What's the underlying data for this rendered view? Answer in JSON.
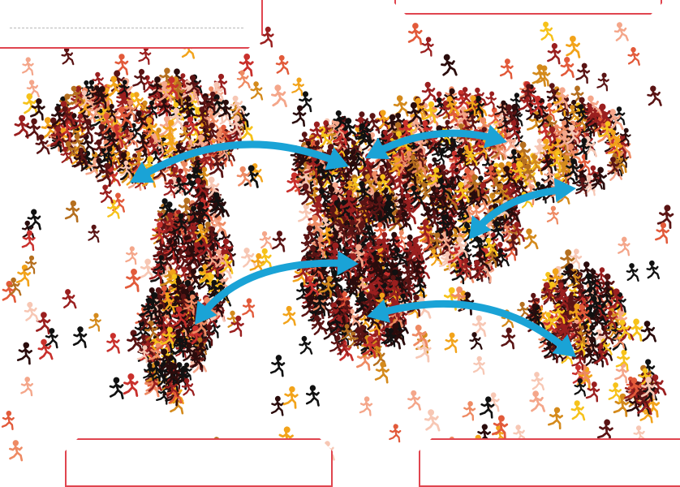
{
  "colors": {
    "arrow": "#1aa3d6",
    "card_border": "#e0454f",
    "figure_palette": [
      "#f7c7b4",
      "#f4a68a",
      "#ee8a63",
      "#e25a3a",
      "#c9302c",
      "#9a1f1f",
      "#5a1414",
      "#2a0c0c",
      "#111111",
      "#f6c21a",
      "#f2a31a",
      "#d48a1c",
      "#b56f1f"
    ]
  },
  "icons": {
    "figure": "running-person-icon",
    "arrow": "double-headed-curved-arrow"
  }
}
